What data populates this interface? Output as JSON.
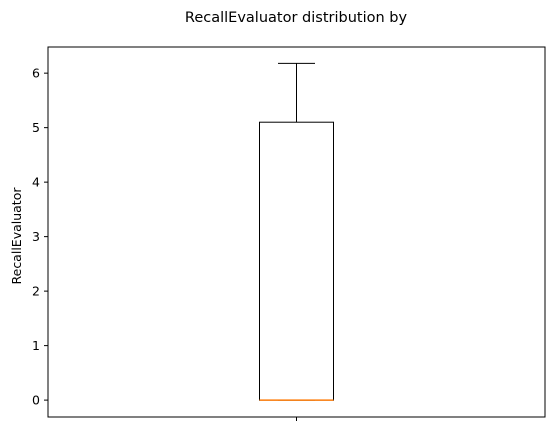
{
  "chart_data": {
    "type": "box",
    "title": "RecallEvaluator distribution by",
    "xlabel": "",
    "ylabel": "RecallEvaluator",
    "ylim": [
      -0.31,
      6.48
    ],
    "yticks": [
      0,
      1,
      2,
      3,
      4,
      5,
      6
    ],
    "xtick_labels": [
      ""
    ],
    "grid": false,
    "boxes": [
      {
        "min": 0.0,
        "q1": 0.0,
        "median": 0.0,
        "q3": 5.1,
        "max": 6.18
      }
    ],
    "colors": {
      "box": "#000000",
      "median": "#ff7f0e",
      "axes": "#000000"
    }
  }
}
